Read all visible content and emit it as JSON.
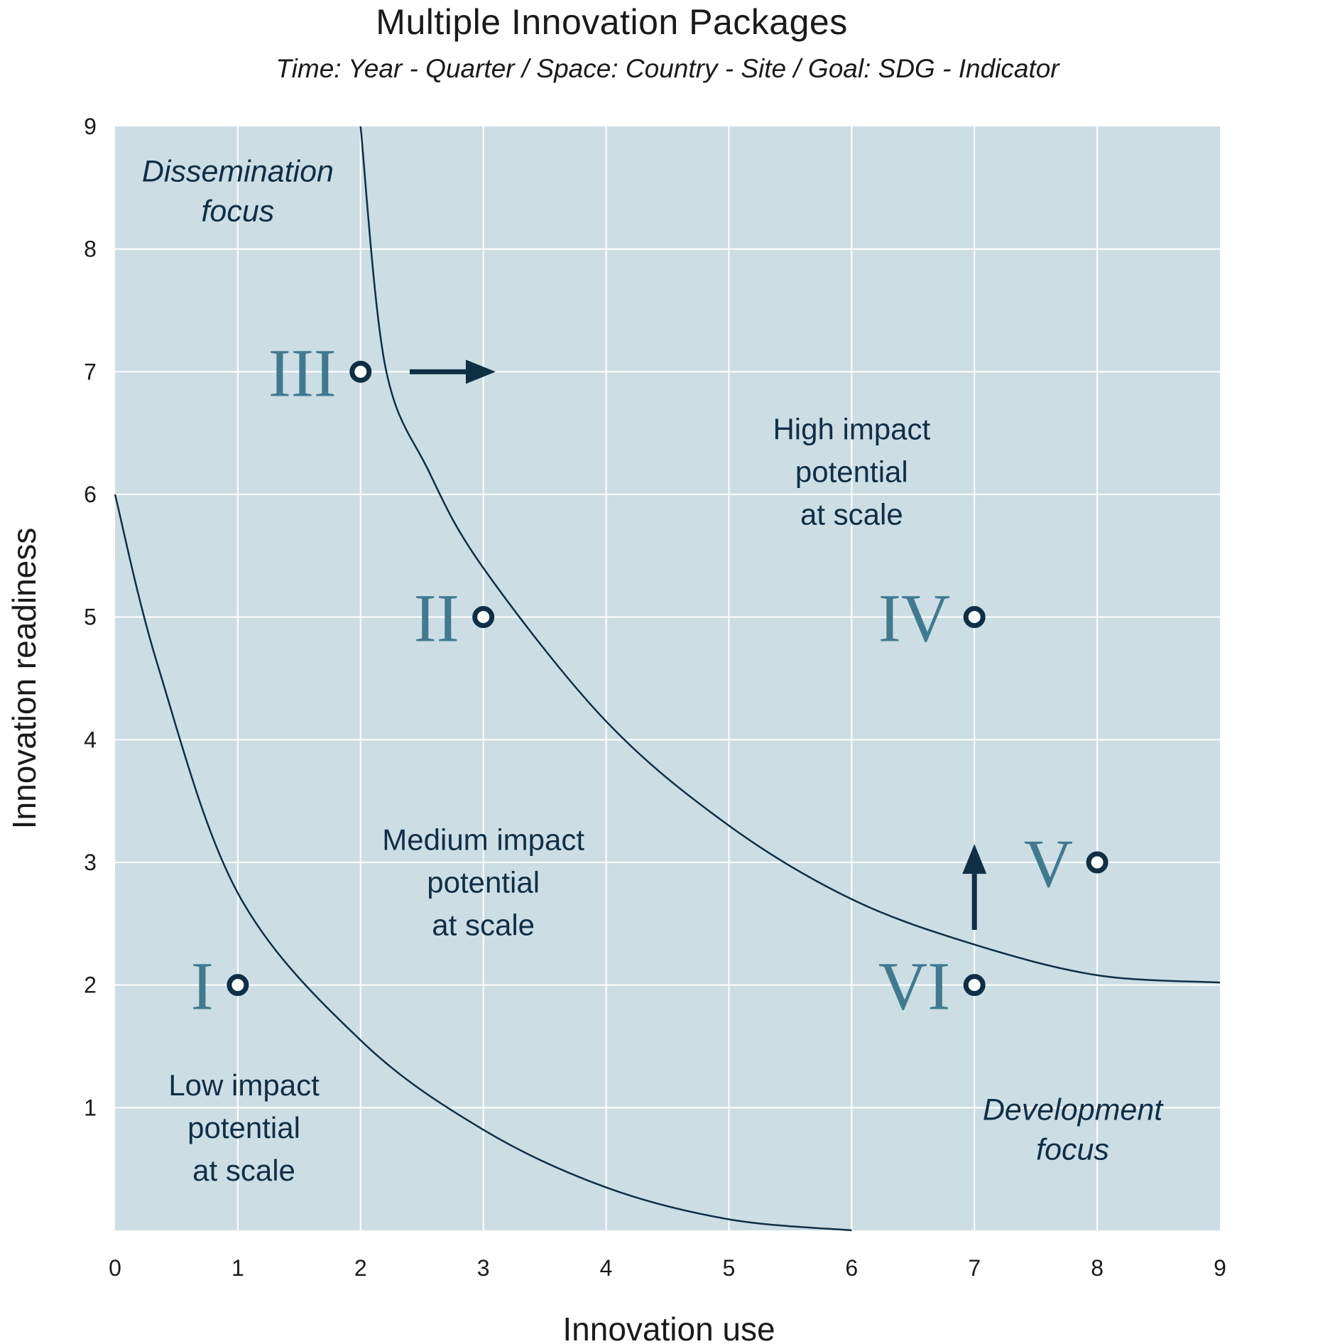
{
  "chart_data": {
    "type": "scatter",
    "title": "Multiple Innovation Packages",
    "subtitle": "Time: Year - Quarter / Space: Country - Site / Goal: SDG - Indicator",
    "xlabel": "Innovation  use",
    "ylabel": "Innovation readiness",
    "xlim": [
      0,
      9
    ],
    "ylim": [
      0,
      9
    ],
    "x_ticks": [
      "0",
      "1",
      "2",
      "3",
      "4",
      "5",
      "6",
      "7",
      "8",
      "9"
    ],
    "y_ticks": [
      "1",
      "2",
      "3",
      "4",
      "5",
      "6",
      "7",
      "8",
      "9"
    ],
    "grid": true,
    "points": [
      {
        "label": "I",
        "x": 1,
        "y": 2
      },
      {
        "label": "II",
        "x": 3,
        "y": 5
      },
      {
        "label": "III",
        "x": 2,
        "y": 7
      },
      {
        "label": "IV",
        "x": 7,
        "y": 5
      },
      {
        "label": "V",
        "x": 8,
        "y": 3
      },
      {
        "label": "VI",
        "x": 7,
        "y": 2
      }
    ],
    "arrows": [
      {
        "from": [
          2.4,
          7
        ],
        "to": [
          3.1,
          7
        ]
      },
      {
        "from": [
          7,
          2.45
        ],
        "to": [
          7,
          3.15
        ]
      }
    ],
    "curves": [
      {
        "points": [
          [
            0,
            6
          ],
          [
            0.35,
            4.6
          ],
          [
            1,
            2.75
          ],
          [
            2,
            1.55
          ],
          [
            3,
            0.82
          ],
          [
            4,
            0.35
          ],
          [
            5,
            0.09
          ],
          [
            6,
            0
          ]
        ]
      },
      {
        "points": [
          [
            2,
            9
          ],
          [
            2.2,
            7.05
          ],
          [
            2.55,
            6.2
          ],
          [
            3,
            5.4
          ],
          [
            4,
            4.15
          ],
          [
            5,
            3.3
          ],
          [
            6,
            2.7
          ],
          [
            7,
            2.33
          ],
          [
            8,
            2.08
          ],
          [
            9,
            2.02
          ]
        ]
      }
    ],
    "regions": [
      {
        "lines": [
          "Dissemination",
          "focus"
        ],
        "x": 1,
        "y": 8.55,
        "style": "italic"
      },
      {
        "lines": [
          "High  impact",
          "potential",
          "at scale"
        ],
        "x": 6,
        "y": 6.45,
        "style": "normal"
      },
      {
        "lines": [
          "Medium  impact",
          "potential",
          "at scale"
        ],
        "x": 3,
        "y": 3.1,
        "style": "normal"
      },
      {
        "lines": [
          "Low impact",
          "potential",
          "at scale"
        ],
        "x": 1.05,
        "y": 1.1,
        "style": "normal"
      },
      {
        "lines": [
          "Development",
          "focus"
        ],
        "x": 7.8,
        "y": 0.9,
        "style": "italic"
      }
    ],
    "colors": {
      "plot_background": "#ccdde4",
      "grid": "#ffffff",
      "curve": "#0f2f45",
      "point_label": "#3f7a90",
      "marker_stroke": "#0f2f45",
      "arrow": "#0f2f45",
      "text": "#0f2f45"
    }
  }
}
